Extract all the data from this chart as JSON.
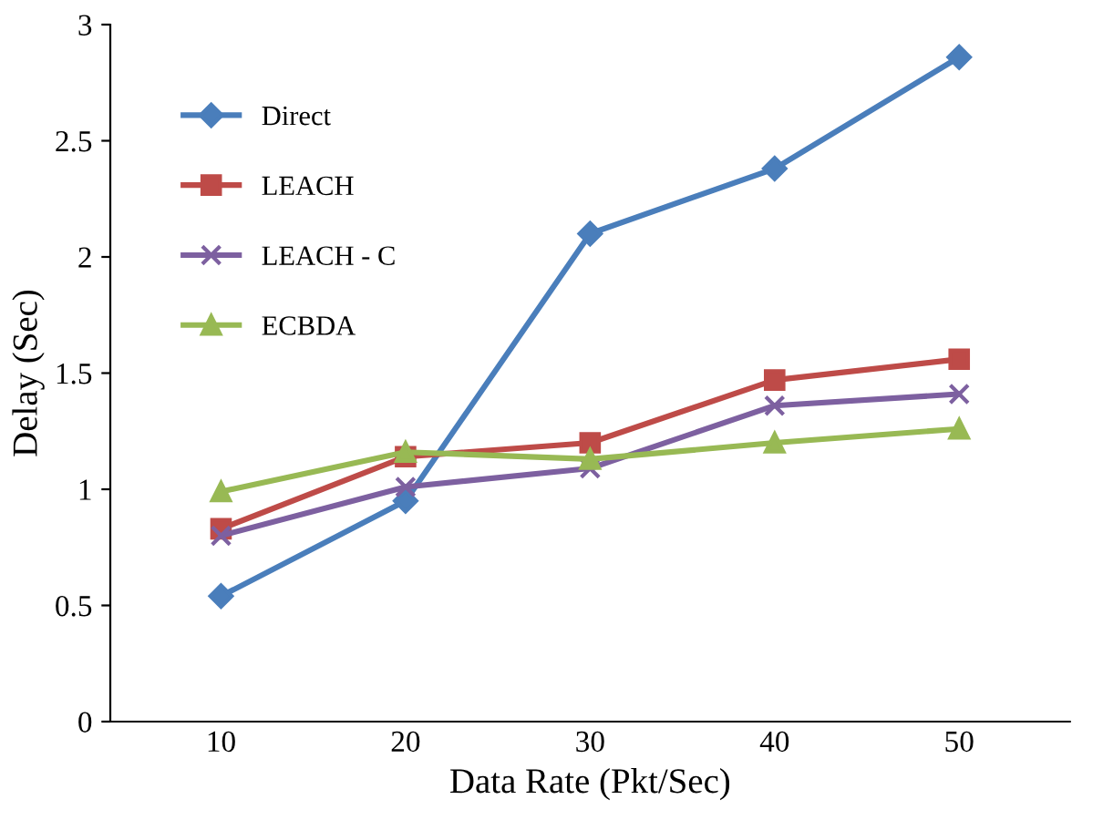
{
  "chart_data": {
    "type": "line",
    "xlabel": "Data Rate (Pkt/Sec)",
    "ylabel": "Delay (Sec)",
    "categories": [
      "10",
      "20",
      "30",
      "40",
      "50"
    ],
    "series": [
      {
        "name": "Direct",
        "color": "#4a7ebb",
        "marker": "diamond",
        "values": [
          0.54,
          0.95,
          2.1,
          2.38,
          2.86
        ]
      },
      {
        "name": "LEACH",
        "color": "#be4b48",
        "marker": "square",
        "values": [
          0.83,
          1.14,
          1.2,
          1.47,
          1.56
        ]
      },
      {
        "name": "LEACH - C",
        "color": "#7d60a0",
        "marker": "cross",
        "values": [
          0.8,
          1.01,
          1.09,
          1.36,
          1.41
        ]
      },
      {
        "name": "ECBDA",
        "color": "#98b954",
        "marker": "triangle",
        "values": [
          0.99,
          1.16,
          1.13,
          1.2,
          1.26
        ]
      }
    ],
    "ylim": [
      0,
      3
    ],
    "yticks": [
      0,
      0.5,
      1,
      1.5,
      2,
      2.5,
      3
    ],
    "grid": false,
    "legend": "top left"
  }
}
